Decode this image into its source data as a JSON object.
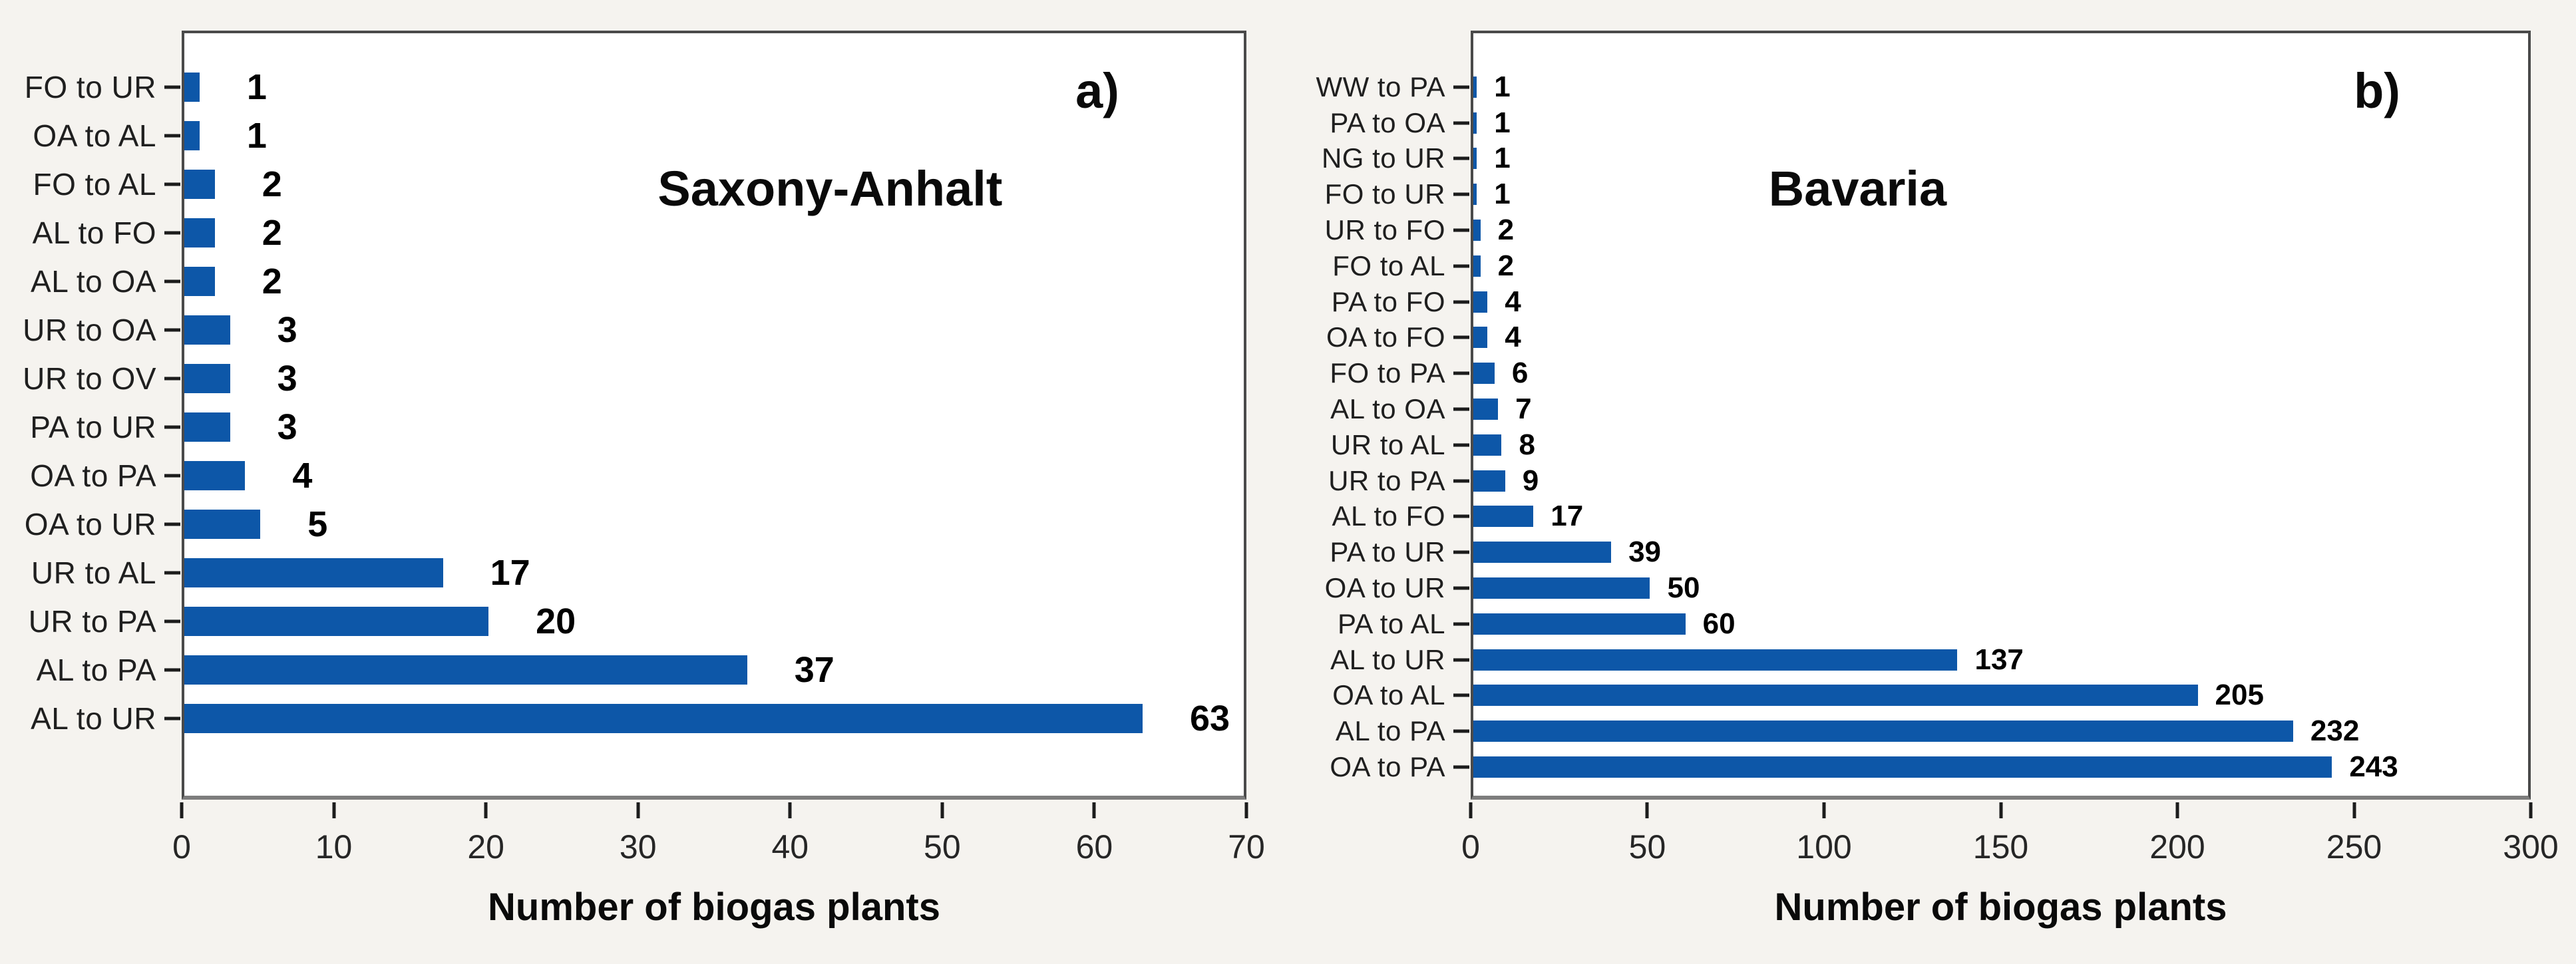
{
  "figure": {
    "background": "#F5F3EF",
    "description_visible_text_only": true
  },
  "colors": {
    "bar": "#0D57A8",
    "plot_border": "#4A4A4A",
    "axis_line": "#7D7D7D",
    "tick": "#1C1C1C",
    "plot_background": "#FFFFFF",
    "page_background": "#F5F3EF",
    "text": "#000000"
  },
  "chart_data": [
    {
      "type": "bar",
      "orientation": "horizontal",
      "panel_label": "a)",
      "title": "Saxony-Anhalt",
      "xlabel": "Number of biogas plants",
      "xlim": [
        0,
        70
      ],
      "xticks": [
        0,
        10,
        20,
        30,
        40,
        50,
        60,
        70
      ],
      "grid": false,
      "legend": false,
      "bar_color": "#0D57A8",
      "categories": [
        "FO to UR",
        "OA to AL",
        "FO to AL",
        "AL to FO",
        "AL to OA",
        "UR to OA",
        "UR to OV",
        "PA to UR",
        "OA to PA",
        "OA to UR",
        "UR to AL",
        "UR to PA",
        "AL to PA",
        "AL to UR"
      ],
      "values": [
        1,
        1,
        2,
        2,
        2,
        3,
        3,
        3,
        4,
        5,
        17,
        20,
        37,
        63
      ]
    },
    {
      "type": "bar",
      "orientation": "horizontal",
      "panel_label": "b)",
      "title": "Bavaria",
      "xlabel": "Number of biogas plants",
      "xlim": [
        0,
        300
      ],
      "xticks": [
        0,
        50,
        100,
        150,
        200,
        250,
        300
      ],
      "grid": false,
      "legend": false,
      "bar_color": "#0D57A8",
      "categories": [
        "WW to PA",
        "PA to OA",
        "NG to UR",
        "FO to UR",
        "UR to FO",
        "FO to AL",
        "PA to FO",
        "OA to FO",
        "FO to PA",
        "AL to OA",
        "UR to AL",
        "UR to PA",
        "AL to FO",
        "PA to UR",
        "OA to UR",
        "PA to AL",
        "AL to UR",
        "OA to AL",
        "AL to PA",
        "OA to PA"
      ],
      "values": [
        1,
        1,
        1,
        1,
        2,
        2,
        4,
        4,
        6,
        7,
        8,
        9,
        17,
        39,
        50,
        60,
        137,
        205,
        232,
        243
      ]
    }
  ]
}
